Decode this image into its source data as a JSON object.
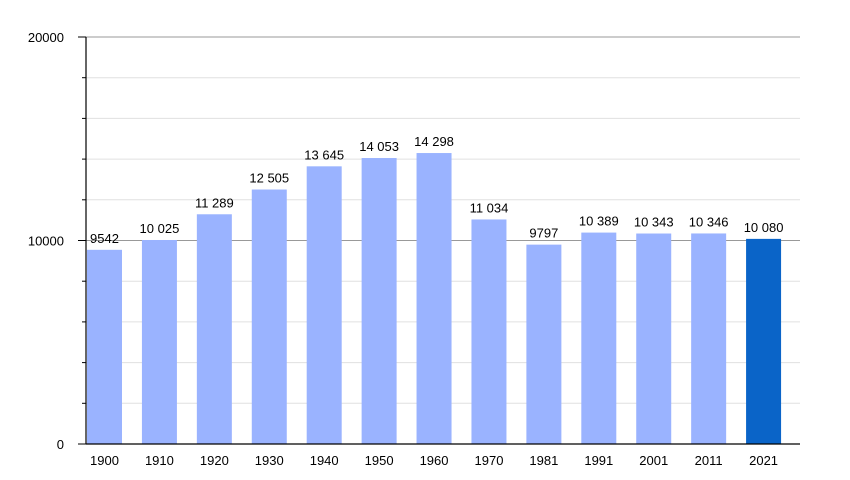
{
  "chart_data": {
    "type": "bar",
    "categories": [
      "1900",
      "1910",
      "1920",
      "1930",
      "1940",
      "1950",
      "1960",
      "1970",
      "1981",
      "1991",
      "2001",
      "2011",
      "2021"
    ],
    "values": [
      9542,
      10025,
      11289,
      12505,
      13645,
      14053,
      14298,
      11034,
      9797,
      10389,
      10343,
      10346,
      10080
    ],
    "data_labels": [
      "9542",
      "10 025",
      "11 289",
      "12 505",
      "13 645",
      "14 053",
      "14 298",
      "11 034",
      "9797",
      "10 389",
      "10 343",
      "10 346",
      "10 080"
    ],
    "yticks": [
      0,
      10000,
      20000
    ],
    "ytick_labels": [
      "0",
      "10000",
      "20000"
    ],
    "ylim": [
      0,
      20000
    ],
    "minor_step": 2000,
    "grid": true,
    "colors": {
      "bar": "#9ab3ff",
      "highlight_bar": "#0a64c8",
      "major_grid": "#999999",
      "minor_grid": "#e0e0e0",
      "axis": "#000000"
    },
    "highlight_index": 12
  }
}
